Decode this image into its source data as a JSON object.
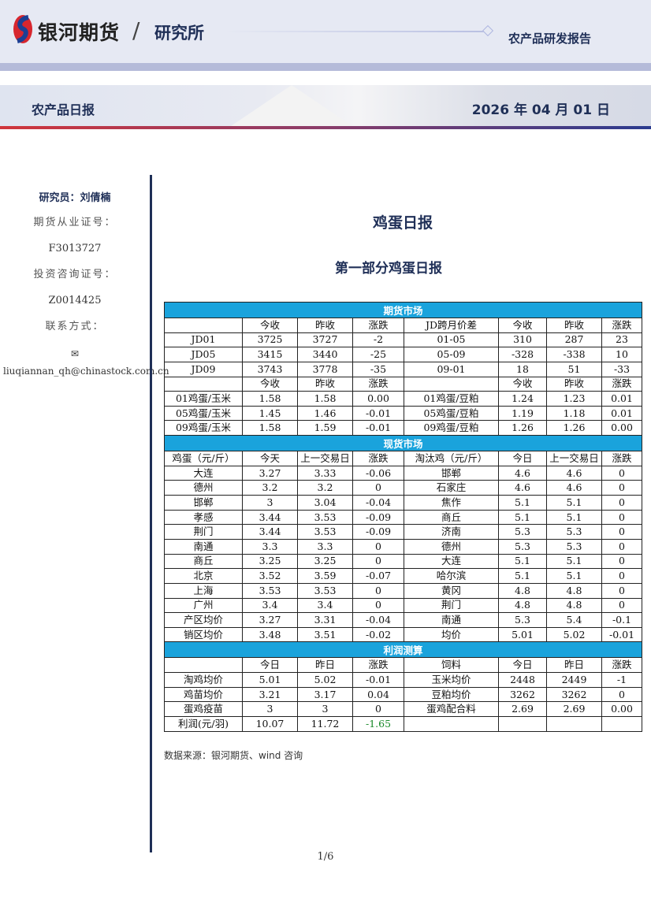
{
  "header": {
    "brand": "银河期货",
    "slash": "/",
    "institute": "研究所",
    "report_type": "农产品研发报告",
    "daily_label": "农产品日报",
    "date": "2026 年 04 月 01 日"
  },
  "sidebar": {
    "researcher": "研究员：刘倩楠",
    "license_label": "期货从业证号：",
    "license": "F3013727",
    "consult_label": "投资咨询证号：",
    "consult": "Z0014425",
    "contact_label": "联系方式：",
    "email": "✉liuqiannan_qh@chinastock.com.cn"
  },
  "main": {
    "title": "鸡蛋日报",
    "subtitle": "第一部分鸡蛋日报",
    "source": "数据来源：银河期货、wind 咨询",
    "page": "1/6"
  },
  "colors": {
    "section_header": "#1aa3dc",
    "navy": "#1f2f57",
    "positive": "#1a8a2a"
  },
  "table": {
    "sections": [
      {
        "title": "期货市场",
        "rows": [
          [
            "",
            "今收",
            "昨收",
            "涨跌",
            "JD跨月价差",
            "今收",
            "昨收",
            "涨跌"
          ],
          [
            "JD01",
            "3725",
            "3727",
            "-2",
            "01-05",
            "310",
            "287",
            "23"
          ],
          [
            "JD05",
            "3415",
            "3440",
            "-25",
            "05-09",
            "-328",
            "-338",
            "10"
          ],
          [
            "JD09",
            "3743",
            "3778",
            "-35",
            "09-01",
            "18",
            "51",
            "-33"
          ],
          [
            "",
            "今收",
            "昨收",
            "涨跌",
            "",
            "今收",
            "昨收",
            "涨跌"
          ],
          [
            "01鸡蛋/玉米",
            "1.58",
            "1.58",
            "0.00",
            "01鸡蛋/豆粕",
            "1.24",
            "1.23",
            "0.01"
          ],
          [
            "05鸡蛋/玉米",
            "1.45",
            "1.46",
            "-0.01",
            "05鸡蛋/豆粕",
            "1.19",
            "1.18",
            "0.01"
          ],
          [
            "09鸡蛋/玉米",
            "1.58",
            "1.59",
            "-0.01",
            "09鸡蛋/豆粕",
            "1.26",
            "1.26",
            "0.00"
          ]
        ]
      },
      {
        "title": "现货市场",
        "rows": [
          [
            "鸡蛋（元/斤）",
            "今天",
            "上一交易日",
            "涨跌",
            "淘汰鸡（元/斤）",
            "今日",
            "上一交易日",
            "涨跌"
          ],
          [
            "大连",
            "3.27",
            "3.33",
            "-0.06",
            "邯郸",
            "4.6",
            "4.6",
            "0"
          ],
          [
            "德州",
            "3.2",
            "3.2",
            "0",
            "石家庄",
            "4.6",
            "4.6",
            "0"
          ],
          [
            "邯郸",
            "3",
            "3.04",
            "-0.04",
            "焦作",
            "5.1",
            "5.1",
            "0"
          ],
          [
            "孝感",
            "3.44",
            "3.53",
            "-0.09",
            "商丘",
            "5.1",
            "5.1",
            "0"
          ],
          [
            "荆门",
            "3.44",
            "3.53",
            "-0.09",
            "济南",
            "5.3",
            "5.3",
            "0"
          ],
          [
            "南通",
            "3.3",
            "3.3",
            "0",
            "德州",
            "5.3",
            "5.3",
            "0"
          ],
          [
            "商丘",
            "3.25",
            "3.25",
            "0",
            "大连",
            "5.1",
            "5.1",
            "0"
          ],
          [
            "北京",
            "3.52",
            "3.59",
            "-0.07",
            "哈尔滨",
            "5.1",
            "5.1",
            "0"
          ],
          [
            "上海",
            "3.53",
            "3.53",
            "0",
            "黄冈",
            "4.8",
            "4.8",
            "0"
          ],
          [
            "广州",
            "3.4",
            "3.4",
            "0",
            "荆门",
            "4.8",
            "4.8",
            "0"
          ],
          [
            "产区均价",
            "3.27",
            "3.31",
            "-0.04",
            "南通",
            "5.3",
            "5.4",
            "-0.1"
          ],
          [
            "销区均价",
            "3.48",
            "3.51",
            "-0.02",
            "均价",
            "5.01",
            "5.02",
            "-0.01"
          ]
        ]
      },
      {
        "title": "利润测算",
        "rows": [
          [
            "",
            "今日",
            "昨日",
            "涨跌",
            "饲料",
            "今日",
            "昨日",
            "涨跌"
          ],
          [
            "淘鸡均价",
            "5.01",
            "5.02",
            "-0.01",
            "玉米均价",
            "2448",
            "2449",
            "-1"
          ],
          [
            "鸡苗均价",
            "3.21",
            "3.17",
            "0.04",
            "豆粕均价",
            "3262",
            "3262",
            "0"
          ],
          [
            "蛋鸡疫苗",
            "3",
            "3",
            "0",
            "蛋鸡配合料",
            "2.69",
            "2.69",
            "0.00"
          ],
          [
            "利润(元/羽)",
            "10.07",
            "11.72",
            "-1.65",
            "",
            "",
            "",
            ""
          ]
        ]
      }
    ]
  }
}
